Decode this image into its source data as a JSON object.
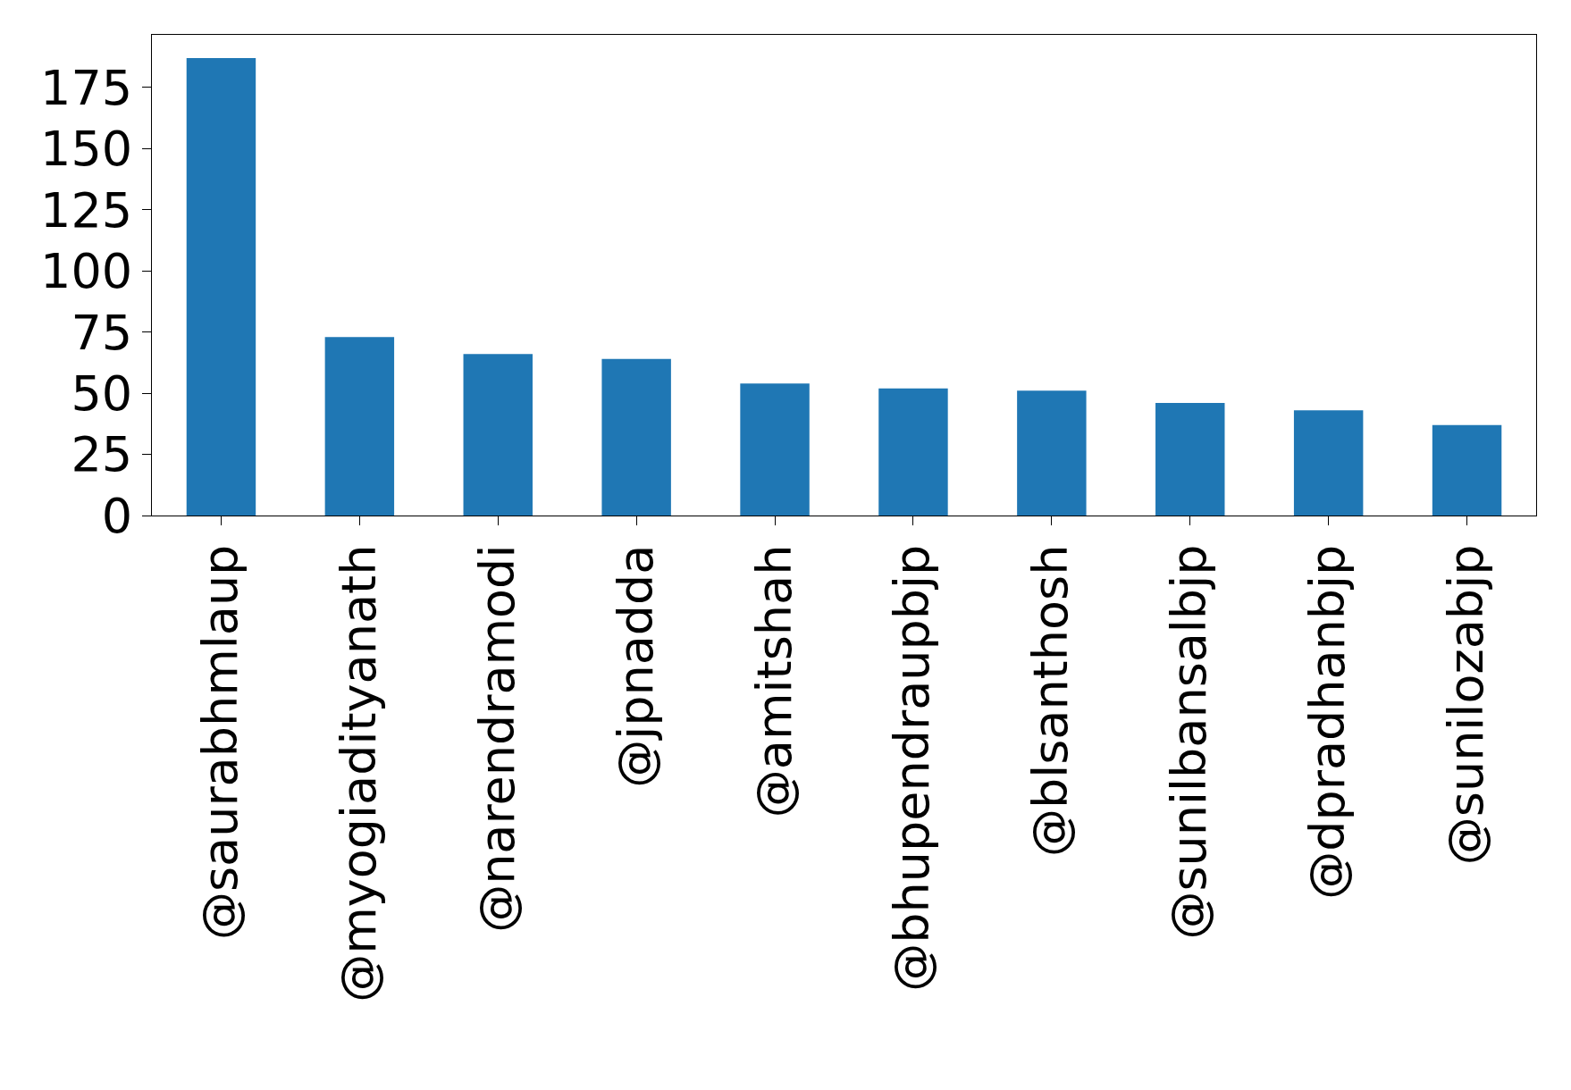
{
  "chart_data": {
    "type": "bar",
    "categories": [
      "@saurabhmlaup",
      "@myogiadityanath",
      "@narendramodi",
      "@jpnadda",
      "@amitshah",
      "@bhupendraupbjp",
      "@blsanthosh",
      "@sunilbansalbjp",
      "@dpradhanbjp",
      "@sunilozabjp"
    ],
    "values": [
      187,
      73,
      66,
      64,
      54,
      52,
      51,
      46,
      43,
      37
    ],
    "color": "#1f77b4",
    "ylim": [
      0,
      196.5
    ],
    "yticks": [
      0,
      25,
      50,
      75,
      100,
      125,
      150,
      175
    ],
    "grid": false
  }
}
